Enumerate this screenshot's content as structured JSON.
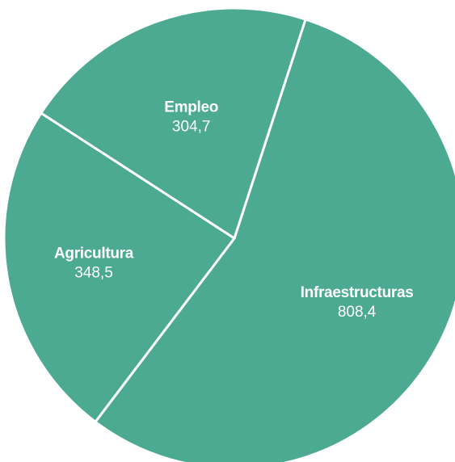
{
  "chart_data": {
    "type": "pie",
    "title": "",
    "slices": [
      {
        "label": "Infraestructuras",
        "value": 808.4,
        "value_label": "808,4"
      },
      {
        "label": "Empleo",
        "value": 304.7,
        "value_label": "304,7"
      },
      {
        "label": "Agricultura",
        "value": 348.5,
        "value_label": "348,5"
      }
    ],
    "slice_color": "#4ca992",
    "separator_color": "#ffffff",
    "legend": "none"
  }
}
